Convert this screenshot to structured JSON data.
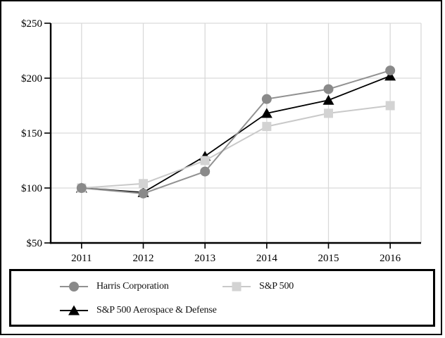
{
  "chart_data": {
    "type": "line",
    "title": "",
    "xlabel": "",
    "ylabel": "",
    "categories": [
      "2011",
      "2012",
      "2013",
      "2014",
      "2015",
      "2016"
    ],
    "series": [
      {
        "name": "Harris Corporation",
        "marker": "circle",
        "marker_color": "#8a8a8a",
        "line_color": "#919191",
        "values": [
          100,
          95,
          115,
          181,
          190,
          207
        ]
      },
      {
        "name": "S&P 500",
        "marker": "square",
        "marker_color": "#d3d3d3",
        "line_color": "#c9c9c9",
        "values": [
          100,
          104,
          125,
          156,
          168,
          175
        ]
      },
      {
        "name": "S&P 500 Aerospace & Defense",
        "marker": "triangle",
        "marker_color": "#000000",
        "line_color": "#000000",
        "values": [
          100,
          96,
          129,
          168,
          180,
          202
        ]
      }
    ],
    "draw_order": [
      2,
      1,
      0
    ],
    "ylim": [
      50,
      250
    ],
    "yticks": [
      50,
      100,
      150,
      200,
      250
    ],
    "ytick_labels": [
      "$50",
      "$100",
      "$150",
      "$200",
      "$250"
    ],
    "grid": true,
    "legend_position": "bottom"
  },
  "colors": {
    "background": "#ffffff",
    "grid": "#d9d9d9",
    "axis": "#000000",
    "text": "#000000",
    "frame": "#000000"
  }
}
